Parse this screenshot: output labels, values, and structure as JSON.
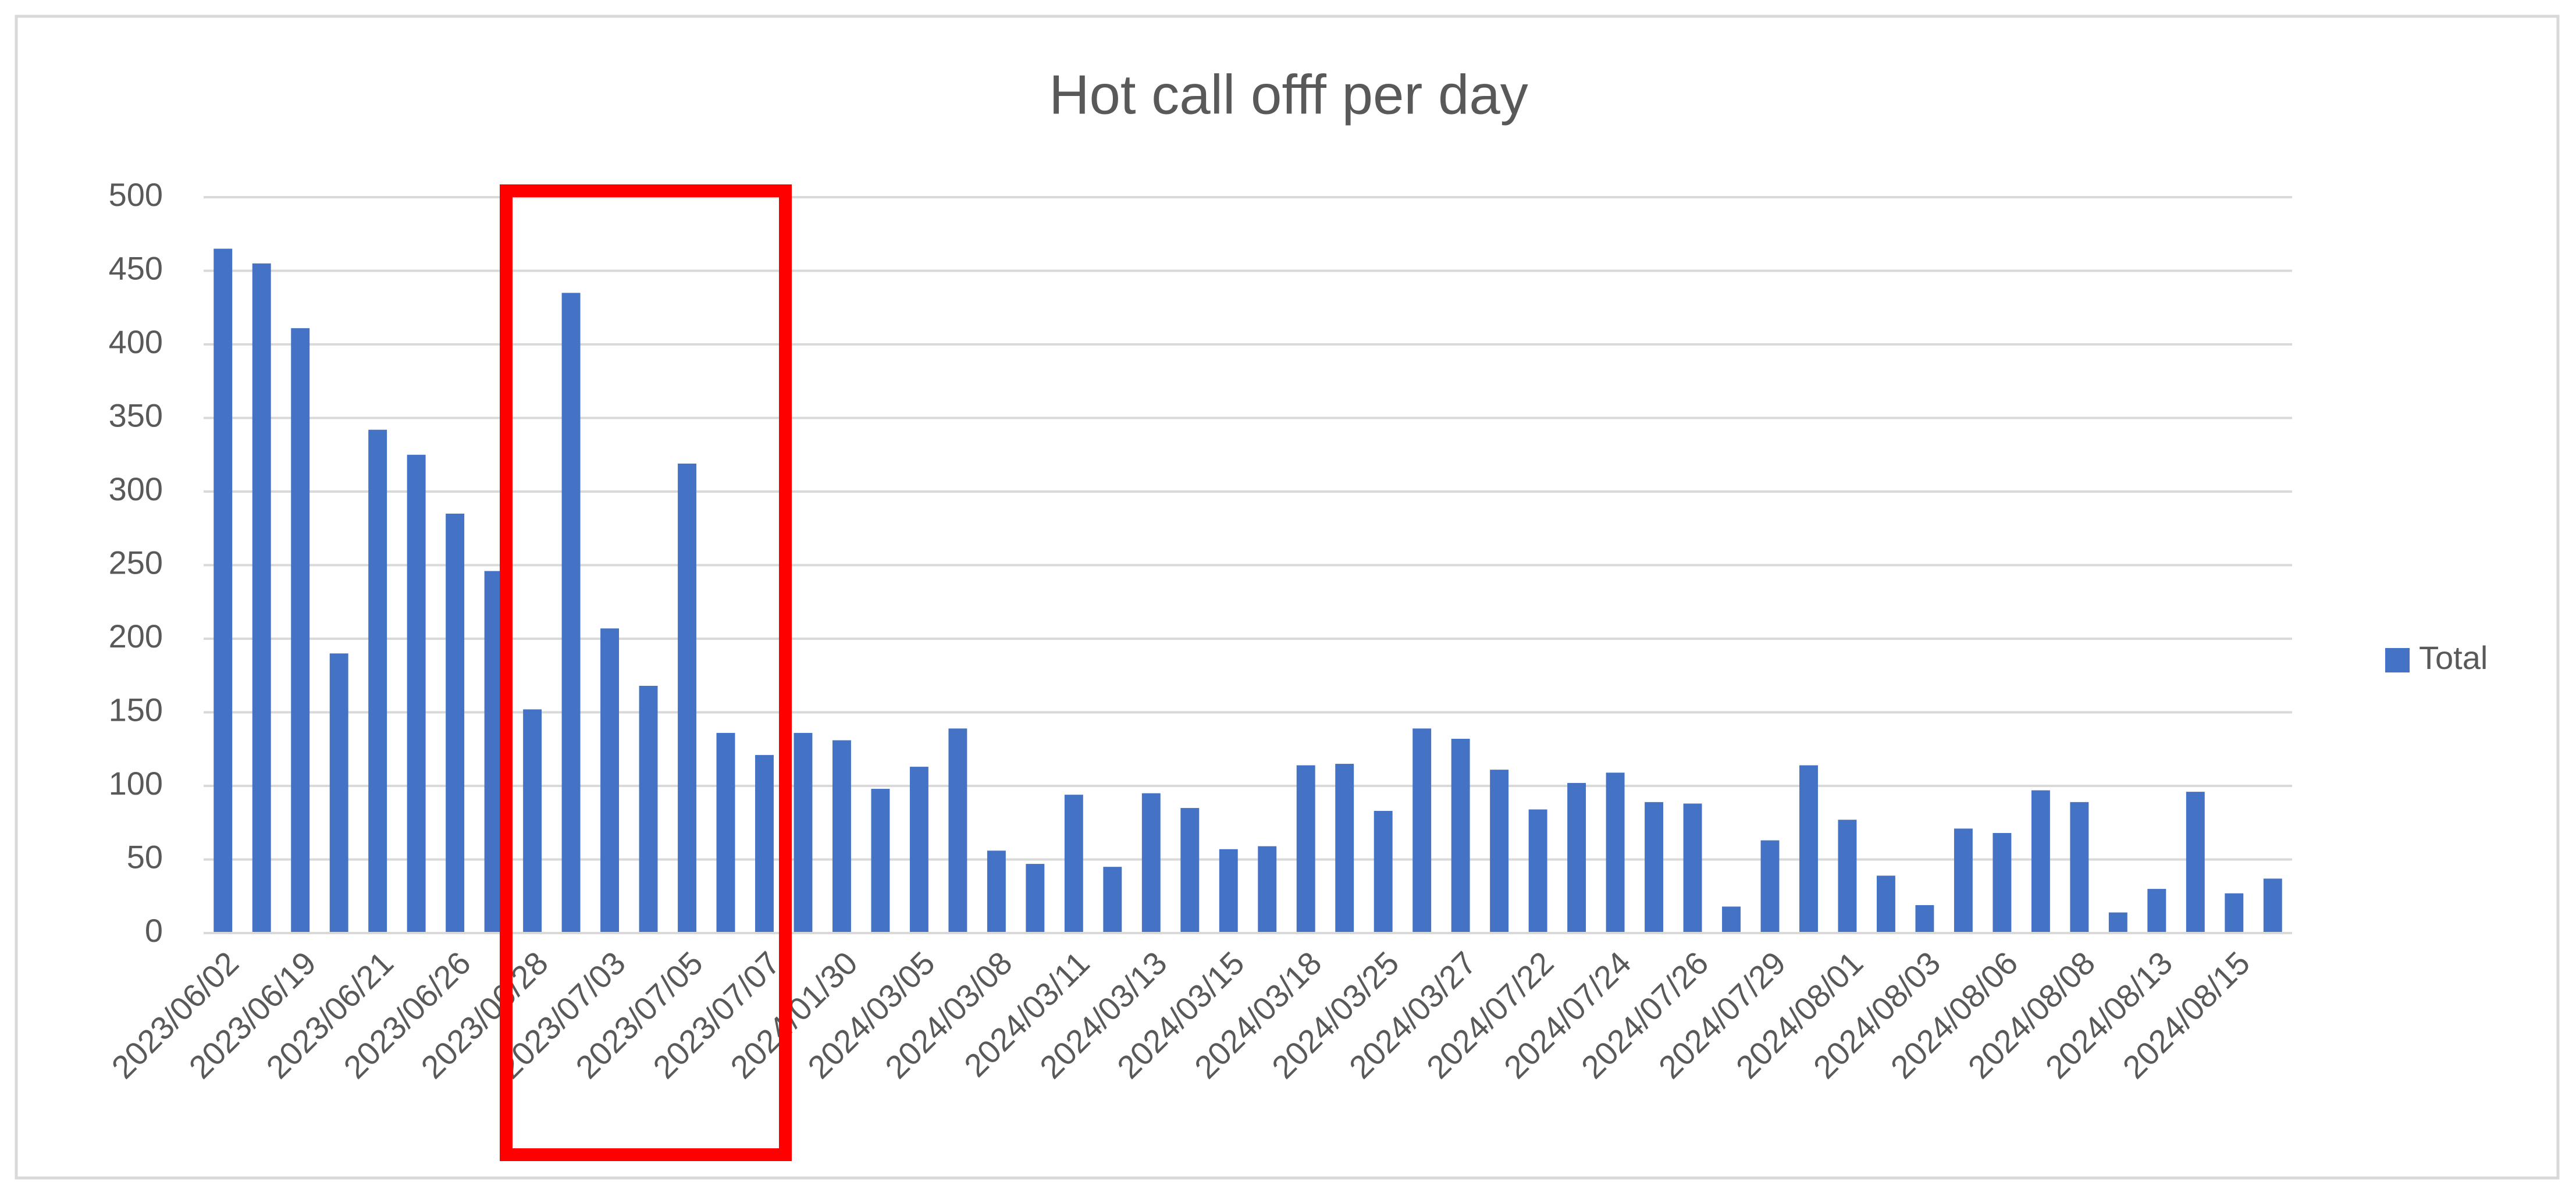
{
  "chart_data": {
    "type": "bar",
    "title": "Hot call offf per day",
    "categories": [
      "2023/06/02",
      null,
      "2023/06/19",
      null,
      "2023/06/21",
      null,
      "2023/06/26",
      null,
      "2023/06/28",
      null,
      "2023/07/03",
      null,
      "2023/07/05",
      null,
      "2023/07/07",
      null,
      "2024/01/30",
      null,
      "2024/03/05",
      null,
      "2024/03/08",
      null,
      "2024/03/11",
      null,
      "2024/03/13",
      null,
      "2024/03/15",
      null,
      "2024/03/18",
      null,
      "2024/03/25",
      null,
      "2024/03/27",
      null,
      "2024/07/22",
      null,
      "2024/07/24",
      null,
      "2024/07/26",
      null,
      "2024/07/29",
      null,
      "2024/08/01",
      null,
      "2024/08/03",
      null,
      "2024/08/06",
      null,
      "2024/08/08",
      null,
      "2024/08/13",
      null,
      "2024/08/15",
      null
    ],
    "series": [
      {
        "name": "Total",
        "color": "#4472c4",
        "values": [
          465,
          455,
          411,
          190,
          342,
          325,
          285,
          246,
          152,
          435,
          207,
          168,
          319,
          136,
          121,
          136,
          131,
          98,
          113,
          139,
          56,
          47,
          94,
          45,
          95,
          85,
          57,
          59,
          114,
          115,
          83,
          139,
          132,
          111,
          84,
          102,
          109,
          89,
          88,
          18,
          63,
          114,
          77,
          39,
          19,
          71,
          68,
          97,
          89,
          14,
          30,
          96,
          27,
          37
        ]
      }
    ],
    "ylim": [
      0,
      500
    ],
    "yticks": [
      0,
      50,
      100,
      150,
      200,
      250,
      300,
      350,
      400,
      450,
      500
    ],
    "grid": true,
    "legend": "right"
  }
}
